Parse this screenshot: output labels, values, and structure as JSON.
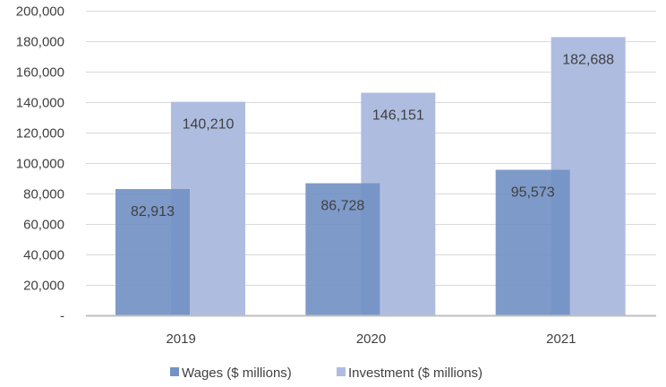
{
  "chart_data": {
    "type": "bar",
    "title": "",
    "xlabel": "",
    "ylabel": "",
    "categories": [
      "2019",
      "2020",
      "2021"
    ],
    "series": [
      {
        "name": "Wages ($ millions)",
        "values": [
          82913,
          86728,
          95573
        ],
        "data_labels": [
          "82,913",
          "86,728",
          "95,573"
        ],
        "color": "#7391C4"
      },
      {
        "name": "Investment ($ millions)",
        "values": [
          140210,
          146151,
          182688
        ],
        "data_labels": [
          "140,210",
          "146,151",
          "182,688"
        ],
        "color": "#AEBCE0"
      }
    ],
    "ylim": [
      0,
      200000
    ],
    "y_ticks": [
      0,
      20000,
      40000,
      60000,
      80000,
      100000,
      120000,
      140000,
      160000,
      180000,
      200000
    ],
    "y_tick_labels": [
      "-",
      "20,000",
      "40,000",
      "60,000",
      "80,000",
      "100,000",
      "120,000",
      "140,000",
      "160,000",
      "180,000",
      "200,000"
    ],
    "grid": true,
    "legend_position": "bottom",
    "bar_arrangement": "overlapping"
  }
}
